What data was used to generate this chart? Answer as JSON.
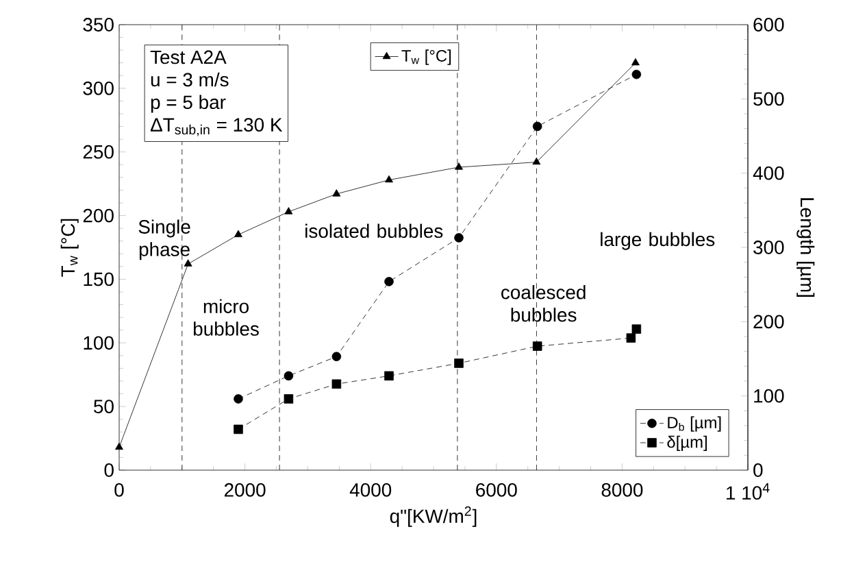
{
  "chart_data": {
    "type": "line",
    "xlabel": "q\"[KW/m$^{2}$]",
    "ylabel": "T$_{w}$ [°C]",
    "y2label": "Length [µm]",
    "xlim": [
      0,
      10000
    ],
    "xticks": [
      0,
      2000,
      4000,
      6000,
      8000,
      {
        "value": 10000,
        "label": "1 10$^{4}$"
      }
    ],
    "ylim": [
      0,
      350
    ],
    "yticks": [
      0,
      50,
      100,
      150,
      200,
      250,
      300,
      350
    ],
    "y2lim": [
      0,
      600
    ],
    "y2ticks": [
      0,
      100,
      200,
      300,
      400,
      500,
      600
    ],
    "grid": false,
    "legend": "bottom right",
    "series": [
      {
        "name": "T$_{w}$ [°C]",
        "color": "#000000",
        "marker": "triangle",
        "line_style": "solid",
        "x": [
          0,
          1096,
          1895,
          2695,
          3457,
          4292,
          5403,
          6638,
          8213
        ],
        "values": [
          18,
          162,
          185,
          203,
          217,
          228,
          238,
          242,
          320
        ]
      },
      {
        "name": "D$_{b}$ [µm]",
        "color": "#000000",
        "marker": "circle",
        "line_style": "dashed",
        "axis": "y2",
        "x": [
          1895,
          2695,
          3457,
          4292,
          5403,
          6652,
          8228
        ],
        "values": [
          96,
          127,
          153,
          254,
          313,
          463,
          533
        ]
      },
      {
        "name": "δ[µm]",
        "color": "#000000",
        "marker": "square",
        "line_style": "dashed",
        "axis": "y2",
        "x": [
          1895,
          2695,
          3457,
          4292,
          5403,
          6652,
          8141,
          8228
        ],
        "values": [
          55,
          96,
          116,
          127,
          144,
          167,
          178,
          190
        ]
      }
    ],
    "ref_lines": [
      {
        "axis": "x",
        "value": 1000,
        "line_style": "dashed",
        "color": "#000000"
      },
      {
        "axis": "x",
        "value": 2550,
        "line_style": "dashed",
        "color": "#000000"
      },
      {
        "axis": "x",
        "value": 5380,
        "line_style": "dashed",
        "color": "#000000"
      },
      {
        "axis": "x",
        "value": 6640,
        "line_style": "dashed",
        "color": "#000000"
      }
    ],
    "annotations": [
      "Test A2A",
      "u = 3 m/s",
      "p = 5 bar",
      "ΔT$_{sub,in}$ = 130 K",
      "Single phase",
      "micro bubbles",
      "isolated bubbles",
      "coalesced bubbles",
      "large bubbles"
    ]
  }
}
